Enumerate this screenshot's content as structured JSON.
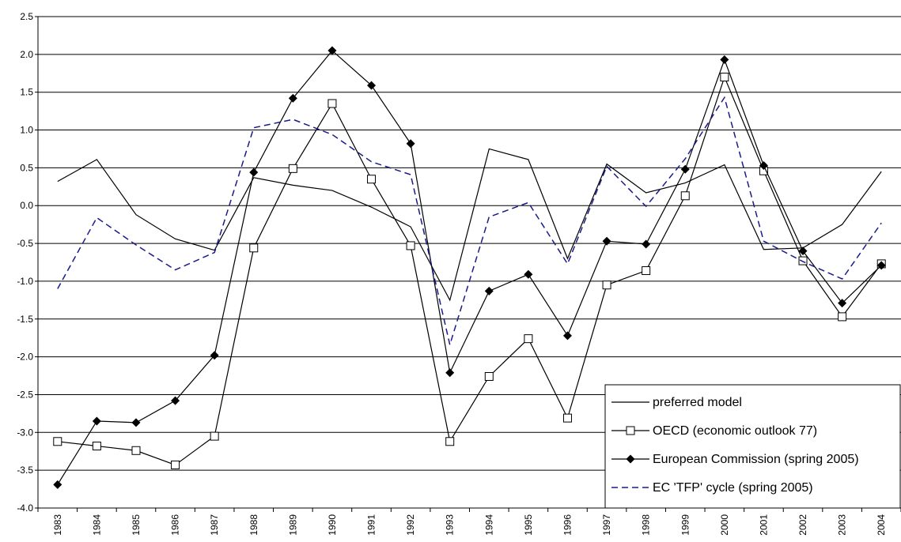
{
  "chart_data": {
    "type": "line",
    "categories": [
      "1983",
      "1984",
      "1985",
      "1986",
      "1987",
      "1988",
      "1989",
      "1990",
      "1991",
      "1992",
      "1993",
      "1994",
      "1995",
      "1996",
      "1997",
      "1998",
      "1999",
      "2000",
      "2001",
      "2002",
      "2003",
      "2004"
    ],
    "series": [
      {
        "name": "preferred model",
        "color": "#000000",
        "marker": "none",
        "dash": false,
        "values": [
          0.32,
          0.61,
          -0.12,
          -0.44,
          -0.59,
          0.37,
          0.27,
          0.2,
          -0.02,
          -0.28,
          -1.25,
          0.75,
          0.61,
          -0.7,
          0.55,
          0.17,
          0.3,
          0.54,
          -0.58,
          -0.56,
          -0.25,
          0.45
        ]
      },
      {
        "name": "OECD (economic outlook 77)",
        "color": "#000000",
        "marker": "square",
        "dash": false,
        "values": [
          -3.12,
          -3.18,
          -3.24,
          -3.43,
          -3.05,
          -0.56,
          0.49,
          1.35,
          0.35,
          -0.53,
          -3.12,
          -2.26,
          -1.76,
          -2.81,
          -1.05,
          -0.86,
          0.13,
          1.7,
          0.46,
          -0.73,
          -1.47,
          -0.77
        ]
      },
      {
        "name": "European Commission (spring 2005)",
        "color": "#000000",
        "marker": "diamond",
        "dash": false,
        "values": [
          -3.69,
          -2.85,
          -2.87,
          -2.58,
          -1.98,
          0.44,
          1.42,
          2.05,
          1.59,
          0.82,
          -2.21,
          -1.13,
          -0.91,
          -1.72,
          -0.47,
          -0.51,
          0.48,
          1.93,
          0.53,
          -0.6,
          -1.29,
          -0.79
        ]
      },
      {
        "name": "EC 'TFP' cycle (spring 2005)",
        "color": "#1a1a8c",
        "marker": "none",
        "dash": true,
        "values": [
          -1.1,
          -0.16,
          -0.52,
          -0.85,
          -0.62,
          1.03,
          1.14,
          0.94,
          0.58,
          0.41,
          -1.84,
          -0.15,
          0.04,
          -0.77,
          0.52,
          -0.01,
          0.62,
          1.43,
          -0.47,
          -0.74,
          -0.97,
          -0.23
        ]
      }
    ],
    "ylim": [
      -4.0,
      2.5
    ],
    "yticks": [
      {
        "value": -4,
        "label": "-4.0"
      },
      -3.5,
      {
        "value": -3,
        "label": "-3.0"
      },
      -2.5,
      {
        "value": -2,
        "label": "-2.0"
      },
      -1.5,
      {
        "value": -1,
        "label": "-1.0"
      },
      -0.5,
      {
        "value": 0,
        "label": "0.0"
      },
      0.5,
      {
        "value": 1,
        "label": "1.0"
      },
      1.5,
      {
        "value": 2,
        "label": "2.0"
      },
      2.5
    ],
    "grid": true,
    "legend": "lower right"
  }
}
